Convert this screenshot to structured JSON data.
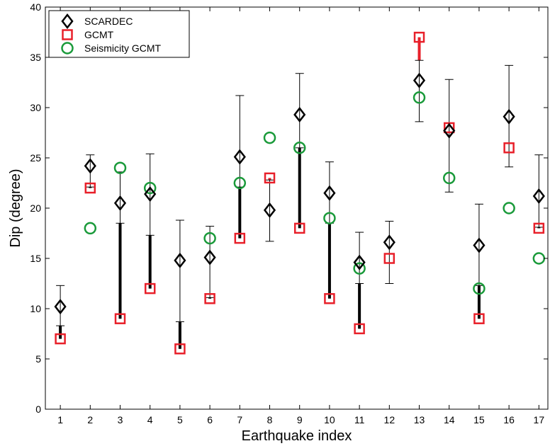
{
  "chart_data": {
    "type": "scatter",
    "xlabel": "Earthquake index",
    "ylabel": "Dip (degree)",
    "xlim": [
      0.5,
      17.3
    ],
    "ylim": [
      0,
      40
    ],
    "x_ticks": [
      1,
      2,
      3,
      4,
      5,
      6,
      7,
      8,
      9,
      10,
      11,
      12,
      13,
      14,
      15,
      16,
      17
    ],
    "y_ticks": [
      0,
      5,
      10,
      15,
      20,
      25,
      30,
      35,
      40
    ],
    "grid": false,
    "legend_position": "top-left",
    "series": [
      {
        "name": "SCARDEC",
        "marker": "diamond",
        "color": "#000000",
        "x": [
          1,
          2,
          3,
          4,
          5,
          6,
          7,
          8,
          9,
          10,
          11,
          12,
          13,
          14,
          15,
          16,
          17
        ],
        "values": [
          10.2,
          24.2,
          20.5,
          21.4,
          14.8,
          15.1,
          25.1,
          19.8,
          29.3,
          21.5,
          14.6,
          16.6,
          32.7,
          27.7,
          16.3,
          29.1,
          21.2
        ],
        "error_low": [
          8.3,
          22.1,
          18.5,
          17.3,
          8.7,
          11.1,
          22.1,
          16.7,
          26.0,
          18.5,
          12.5,
          12.5,
          28.6,
          21.6,
          12.3,
          24.1,
          18.1
        ],
        "error_high": [
          12.3,
          25.3,
          23.6,
          25.4,
          18.8,
          18.2,
          31.2,
          22.8,
          33.4,
          24.6,
          17.6,
          18.7,
          34.7,
          32.8,
          20.4,
          34.2,
          25.3
        ]
      },
      {
        "name": "GCMT",
        "marker": "square",
        "color": "#e8202a",
        "x": [
          1,
          2,
          3,
          4,
          5,
          6,
          7,
          8,
          9,
          10,
          11,
          12,
          13,
          14,
          15,
          16,
          17
        ],
        "values": [
          7,
          22,
          9,
          12,
          6,
          11,
          17,
          23,
          18,
          11,
          8,
          15,
          37,
          28,
          9,
          26,
          18
        ]
      },
      {
        "name": "Seismicity GCMT",
        "marker": "circle",
        "color": "#1a9a3a",
        "x": [
          2,
          3,
          4,
          6,
          7,
          8,
          9,
          10,
          11,
          13,
          14,
          15,
          16,
          17
        ],
        "values": [
          18,
          24,
          22,
          17,
          22.5,
          27,
          26,
          19,
          14,
          31,
          23,
          12,
          20,
          15
        ]
      }
    ]
  }
}
